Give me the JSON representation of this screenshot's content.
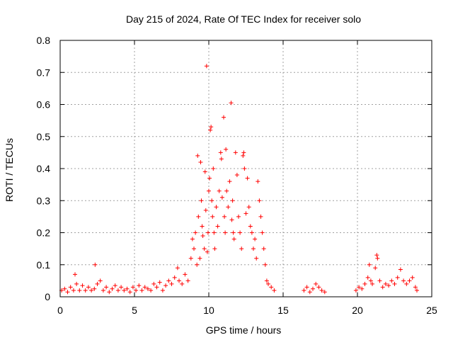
{
  "chart_data": {
    "type": "scatter",
    "title": "Day 215 of 2024, Rate Of TEC Index for receiver solo",
    "xlabel": "GPS time / hours",
    "ylabel": "ROTI / TECUs",
    "xlim": [
      0,
      25
    ],
    "ylim": [
      0,
      0.8
    ],
    "xticks": [
      0,
      5,
      10,
      15,
      20,
      25
    ],
    "xtick_labels": [
      "0",
      "5",
      "10",
      "15",
      "20",
      "25"
    ],
    "yticks": [
      0,
      0.1,
      0.2,
      0.3,
      0.4,
      0.5,
      0.6,
      0.7,
      0.8
    ],
    "ytick_labels": [
      "0",
      "0.1",
      "0.2",
      "0.3",
      "0.4",
      "0.5",
      "0.6",
      "0.7",
      "0.8"
    ],
    "grid": true,
    "marker": "+",
    "marker_color": "#ff0000",
    "series": [
      {
        "points": [
          [
            0.1,
            0.02
          ],
          [
            0.3,
            0.025
          ],
          [
            0.5,
            0.015
          ],
          [
            0.7,
            0.03
          ],
          [
            0.9,
            0.02
          ],
          [
            1.0,
            0.07
          ],
          [
            1.1,
            0.04
          ],
          [
            1.3,
            0.02
          ],
          [
            1.5,
            0.035
          ],
          [
            1.7,
            0.02
          ],
          [
            1.9,
            0.03
          ],
          [
            2.1,
            0.02
          ],
          [
            2.3,
            0.025
          ],
          [
            2.35,
            0.1
          ],
          [
            2.5,
            0.04
          ],
          [
            2.7,
            0.05
          ],
          [
            2.9,
            0.02
          ],
          [
            3.1,
            0.03
          ],
          [
            3.3,
            0.015
          ],
          [
            3.5,
            0.025
          ],
          [
            3.7,
            0.035
          ],
          [
            3.9,
            0.02
          ],
          [
            4.1,
            0.03
          ],
          [
            4.3,
            0.02
          ],
          [
            4.5,
            0.025
          ],
          [
            4.7,
            0.015
          ],
          [
            4.9,
            0.03
          ],
          [
            5.1,
            0.02
          ],
          [
            5.3,
            0.035
          ],
          [
            5.5,
            0.02
          ],
          [
            5.7,
            0.03
          ],
          [
            5.9,
            0.025
          ],
          [
            6.1,
            0.02
          ],
          [
            6.3,
            0.04
          ],
          [
            6.5,
            0.03
          ],
          [
            6.7,
            0.045
          ],
          [
            6.9,
            0.02
          ],
          [
            7.1,
            0.035
          ],
          [
            7.3,
            0.05
          ],
          [
            7.5,
            0.04
          ],
          [
            7.7,
            0.06
          ],
          [
            7.9,
            0.09
          ],
          [
            8.0,
            0.05
          ],
          [
            8.2,
            0.04
          ],
          [
            8.4,
            0.07
          ],
          [
            8.6,
            0.05
          ],
          [
            8.8,
            0.12
          ],
          [
            8.9,
            0.18
          ],
          [
            9.0,
            0.15
          ],
          [
            9.1,
            0.2
          ],
          [
            9.2,
            0.1
          ],
          [
            9.25,
            0.44
          ],
          [
            9.3,
            0.25
          ],
          [
            9.4,
            0.12
          ],
          [
            9.45,
            0.42
          ],
          [
            9.5,
            0.3
          ],
          [
            9.55,
            0.22
          ],
          [
            9.6,
            0.19
          ],
          [
            9.7,
            0.15
          ],
          [
            9.75,
            0.39
          ],
          [
            9.8,
            0.27
          ],
          [
            9.85,
            0.72
          ],
          [
            9.9,
            0.14
          ],
          [
            9.95,
            0.2
          ],
          [
            10.0,
            0.33
          ],
          [
            10.05,
            0.37
          ],
          [
            10.1,
            0.52
          ],
          [
            10.15,
            0.53
          ],
          [
            10.2,
            0.3
          ],
          [
            10.25,
            0.25
          ],
          [
            10.3,
            0.4
          ],
          [
            10.35,
            0.2
          ],
          [
            10.4,
            0.15
          ],
          [
            10.5,
            0.28
          ],
          [
            10.6,
            0.22
          ],
          [
            10.7,
            0.33
          ],
          [
            10.8,
            0.45
          ],
          [
            10.85,
            0.43
          ],
          [
            10.9,
            0.31
          ],
          [
            11.0,
            0.56
          ],
          [
            11.05,
            0.25
          ],
          [
            11.1,
            0.2
          ],
          [
            11.15,
            0.46
          ],
          [
            11.2,
            0.33
          ],
          [
            11.3,
            0.28
          ],
          [
            11.4,
            0.36
          ],
          [
            11.5,
            0.605
          ],
          [
            11.55,
            0.24
          ],
          [
            11.6,
            0.3
          ],
          [
            11.65,
            0.2
          ],
          [
            11.7,
            0.18
          ],
          [
            11.8,
            0.45
          ],
          [
            11.9,
            0.38
          ],
          [
            12.0,
            0.25
          ],
          [
            12.1,
            0.2
          ],
          [
            12.2,
            0.15
          ],
          [
            12.3,
            0.44
          ],
          [
            12.35,
            0.45
          ],
          [
            12.4,
            0.4
          ],
          [
            12.5,
            0.26
          ],
          [
            12.6,
            0.37
          ],
          [
            12.7,
            0.28
          ],
          [
            12.8,
            0.22
          ],
          [
            12.9,
            0.2
          ],
          [
            13.0,
            0.15
          ],
          [
            13.1,
            0.18
          ],
          [
            13.2,
            0.12
          ],
          [
            13.3,
            0.36
          ],
          [
            13.4,
            0.3
          ],
          [
            13.5,
            0.25
          ],
          [
            13.6,
            0.2
          ],
          [
            13.7,
            0.15
          ],
          [
            13.8,
            0.1
          ],
          [
            13.9,
            0.05
          ],
          [
            14.0,
            0.04
          ],
          [
            14.2,
            0.03
          ],
          [
            14.4,
            0.02
          ],
          [
            16.4,
            0.02
          ],
          [
            16.6,
            0.03
          ],
          [
            16.8,
            0.015
          ],
          [
            17.0,
            0.025
          ],
          [
            17.2,
            0.04
          ],
          [
            17.4,
            0.03
          ],
          [
            17.6,
            0.02
          ],
          [
            17.8,
            0.015
          ],
          [
            19.9,
            0.02
          ],
          [
            20.1,
            0.03
          ],
          [
            20.3,
            0.025
          ],
          [
            20.5,
            0.04
          ],
          [
            20.7,
            0.06
          ],
          [
            20.8,
            0.1
          ],
          [
            20.9,
            0.05
          ],
          [
            21.0,
            0.04
          ],
          [
            21.2,
            0.09
          ],
          [
            21.3,
            0.13
          ],
          [
            21.35,
            0.12
          ],
          [
            21.5,
            0.05
          ],
          [
            21.7,
            0.03
          ],
          [
            21.9,
            0.04
          ],
          [
            22.1,
            0.035
          ],
          [
            22.3,
            0.05
          ],
          [
            22.5,
            0.04
          ],
          [
            22.7,
            0.06
          ],
          [
            22.9,
            0.085
          ],
          [
            23.1,
            0.05
          ],
          [
            23.3,
            0.04
          ],
          [
            23.5,
            0.05
          ],
          [
            23.7,
            0.06
          ],
          [
            23.9,
            0.03
          ],
          [
            24.0,
            0.02
          ]
        ]
      }
    ]
  }
}
